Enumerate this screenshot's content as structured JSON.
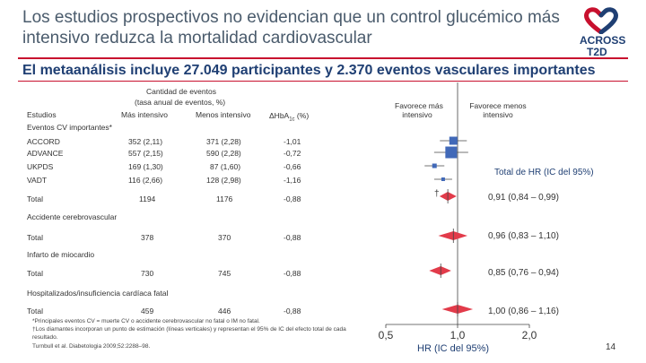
{
  "title": "Los estudios prospectivos no evidencian que un control glucémico más intensivo reduzca la mortalidad cardiovascular",
  "subtitle": "El metaanálisis incluye 27.049 participantes y 2.370 eventos vasculares importantes",
  "logo": {
    "text1": "ACROSS",
    "text2": "T2D",
    "color_red": "#c8102e",
    "color_blue": "#1f3f73"
  },
  "headers": {
    "events_group_line1": "Cantidad de eventos",
    "events_group_line2": "(tasa anual de eventos, %)",
    "studies": "Estudios",
    "more_intensive": "Más intensivo",
    "less_intensive": "Menos intensivo",
    "hba1c": "ΔHbA",
    "hba1c_sub": "1c",
    "hba1c_unit": " (%)",
    "favors_more_1": "Favorece más",
    "favors_more_2": "intensivo",
    "favors_less_1": "Favorece menos",
    "favors_less_2": "intensivo"
  },
  "sections": [
    {
      "name": "Eventos CV importantes*",
      "rows": [
        {
          "study": "ACCORD",
          "more": "352 (2,11)",
          "less": "371 (2,28)",
          "hba1c": "-1,01"
        },
        {
          "study": "ADVANCE",
          "more": "557 (2,15)",
          "less": "590 (2,28)",
          "hba1c": "-0,72"
        },
        {
          "study": "UKPDS",
          "more": "169 (1,30)",
          "less": "87 (1,60)",
          "hba1c": "-0,66"
        },
        {
          "study": "VADT",
          "more": "116 (2,66)",
          "less": "128 (2,98)",
          "hba1c": "-1,16"
        },
        {
          "study": "Total",
          "more": "1194",
          "less": "1176",
          "hba1c": "-0,88"
        }
      ]
    },
    {
      "name": "Accidente cerebrovascular",
      "rows": [
        {
          "study": "Total",
          "more": "378",
          "less": "370",
          "hba1c": "-0,88"
        }
      ]
    },
    {
      "name": "Infarto de miocardio",
      "rows": [
        {
          "study": "Total",
          "more": "730",
          "less": "745",
          "hba1c": "-0,88"
        }
      ]
    },
    {
      "name": "Hospitalizados/insuficiencia cardíaca fatal",
      "rows": [
        {
          "study": "Total",
          "more": "459",
          "less": "446",
          "hba1c": "-0,88"
        }
      ]
    }
  ],
  "hr_header": "Total de HR (IC del 95%)",
  "hr_values": [
    "0,91 (0,84 – 0,99)",
    "0,96 (0,83 – 1,10)",
    "0,85 (0,76 – 0,94)",
    "1,00 (0,86 – 1,16)"
  ],
  "dagger": "†",
  "axis": {
    "ticks": [
      "0,5",
      "1,0",
      "2,0"
    ],
    "label": "HR (IC del 95%)"
  },
  "chart_data": {
    "type": "forest",
    "scale": "log",
    "xlim": [
      0.5,
      2.0
    ],
    "reference": 1.0,
    "studies": [
      {
        "label": "ACCORD",
        "hr": 0.96
      },
      {
        "label": "ADVANCE",
        "hr": 0.94
      },
      {
        "label": "UKPDS",
        "hr": 0.8
      },
      {
        "label": "VADT",
        "hr": 0.87
      }
    ],
    "totals": [
      {
        "label": "Eventos CV importantes",
        "hr": 0.91,
        "lo": 0.84,
        "hi": 0.99
      },
      {
        "label": "Accidente cerebrovascular",
        "hr": 0.96,
        "lo": 0.83,
        "hi": 1.1
      },
      {
        "label": "Infarto de miocardio",
        "hr": 0.85,
        "lo": 0.76,
        "hi": 0.94
      },
      {
        "label": "Hospitalizados/insuficiencia cardíaca fatal",
        "hr": 1.0,
        "lo": 0.86,
        "hi": 1.16
      }
    ],
    "colors": {
      "study": "#4169b8",
      "total": "#e23b4a",
      "line": "#444444"
    }
  },
  "footnotes": [
    "*Principales eventos CV = muerte CV o accidente cerebrovascular no fatal o IM no fatal.",
    "†Los diamantes incorporan un punto de estimación (líneas verticales) y representan el 95% de IC del efecto total de cada resultado.",
    "Turnbull et al. Diabetologia 2009;52:2288–98."
  ],
  "page_number": "14"
}
